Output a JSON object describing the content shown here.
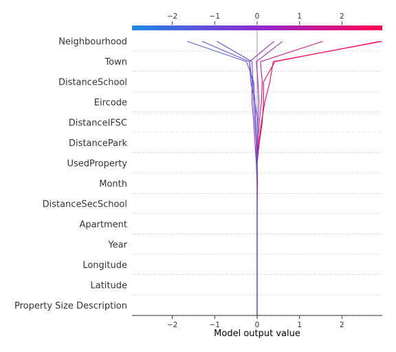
{
  "chart_data": {
    "type": "line",
    "subtype": "shap-decision-plot",
    "title": "",
    "xlabel": "Model output value",
    "ylabel": "",
    "xlim": [
      -2.95,
      2.95
    ],
    "x_ticks": [
      -2,
      -1,
      0,
      1,
      2
    ],
    "x_tick_labels": [
      "−2",
      "−1",
      "0",
      "1",
      "2"
    ],
    "base_value": 0,
    "features": [
      "Neighbourhood",
      "Town",
      "DistanceSchool",
      "Eircode",
      "DistanceIFSC",
      "DistancePark",
      "UsedProperty",
      "Month",
      "DistanceSecSchool",
      "Apartment",
      "Year",
      "Longitude",
      "Latitude",
      "Property Size Description"
    ],
    "colormap": {
      "low": "#1e88e5",
      "mid": "#8f2bd0",
      "high": "#ff0052"
    },
    "grid": true,
    "series": [
      {
        "values": [
          0,
          0,
          0,
          0,
          0,
          0,
          0,
          0.01,
          0.0,
          0.04,
          0.1,
          0.18,
          0.3,
          0.38,
          2.95
        ]
      },
      {
        "values": [
          0,
          0,
          0,
          0,
          0,
          0,
          0,
          0.01,
          0.0,
          0.05,
          0.12,
          0.15,
          0.15,
          0.42,
          2.9
        ]
      },
      {
        "values": [
          0,
          0,
          0,
          0,
          0,
          0,
          0,
          0.0,
          0.0,
          0.02,
          0.05,
          0.1,
          0.12,
          0.08,
          1.55
        ]
      },
      {
        "values": [
          0,
          0,
          0,
          0,
          0,
          0,
          0,
          0.0,
          0.0,
          0.0,
          0.02,
          0.04,
          0.02,
          -0.02,
          0.6
        ]
      },
      {
        "values": [
          0,
          0,
          0,
          0,
          0,
          0,
          0,
          0.0,
          -0.02,
          -0.05,
          -0.08,
          -0.12,
          -0.12,
          -0.18,
          0.4
        ]
      },
      {
        "values": [
          0,
          0,
          0,
          0,
          0,
          0,
          0,
          0.0,
          -0.01,
          -0.02,
          -0.05,
          -0.08,
          -0.1,
          -0.12,
          -0.95
        ]
      },
      {
        "values": [
          0,
          0,
          0,
          0,
          0,
          0,
          0,
          0.0,
          -0.02,
          -0.02,
          -0.03,
          -0.05,
          -0.08,
          -0.25,
          -1.65
        ]
      },
      {
        "values": [
          0,
          0,
          0,
          0,
          0,
          0,
          0,
          0.0,
          0.0,
          0.0,
          0.02,
          -0.05,
          -0.15,
          -0.18,
          -1.3
        ]
      }
    ]
  }
}
